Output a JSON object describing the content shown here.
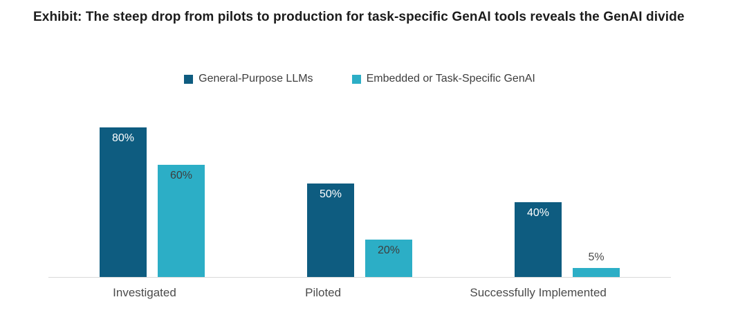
{
  "title": "Exhibit: The steep drop from pilots to production for task-specific GenAI tools reveals the GenAI divide",
  "colors": {
    "general_purpose": "#0E5C80",
    "task_specific": "#2CAEC6",
    "axis_line": "#d9d9d9",
    "label_on_dark": "#ffffff",
    "label_on_light": "#3d3d3d",
    "label_outside": "#4a4a4a"
  },
  "legend": [
    {
      "label": "General-Purpose LLMs",
      "color": "#0E5C80"
    },
    {
      "label": "Embedded or Task-Specific GenAI",
      "color": "#2CAEC6"
    }
  ],
  "chart_data": {
    "type": "bar",
    "title": "Exhibit: The steep drop from pilots to production for task-specific GenAI tools reveals the GenAI divide",
    "categories": [
      "Investigated",
      "Piloted",
      "Successfully Implemented"
    ],
    "series": [
      {
        "name": "General-Purpose LLMs",
        "color": "#0E5C80",
        "values": [
          80,
          50,
          40
        ],
        "labels": [
          "80%",
          "50%",
          "40%"
        ],
        "label_color": "#ffffff"
      },
      {
        "name": "Embedded or Task-Specific GenAI",
        "color": "#2CAEC6",
        "values": [
          60,
          20,
          5
        ],
        "labels": [
          "60%",
          "20%",
          "5%"
        ],
        "label_color": "#3d3d3d"
      }
    ],
    "xlabel": "",
    "ylabel": "",
    "ylim": [
      0,
      100
    ],
    "grid": false,
    "legend_position": "top",
    "data_label_unit": "%"
  }
}
